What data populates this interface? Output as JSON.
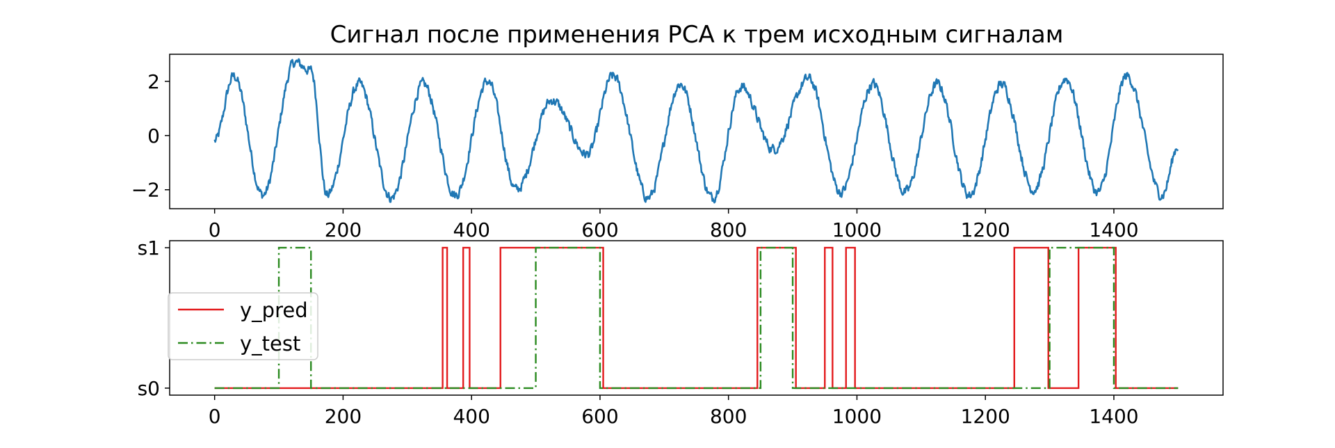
{
  "title": "Сигнал после применения PCA к трем исходным сигналам",
  "colors": {
    "signal": "#1f77b4",
    "y_pred": "#e31a1c",
    "y_test": "#2a8a1f",
    "axes": "#000000"
  },
  "chart_data": [
    {
      "type": "line",
      "title": "Сигнал после применения PCA к трем исходным сигналам",
      "xlim": [
        -70,
        1570
      ],
      "ylim": [
        -2.7,
        3.0
      ],
      "x_ticks": [
        0,
        200,
        400,
        600,
        800,
        1000,
        1200,
        1400
      ],
      "x_tick_labels": [
        "0",
        "200",
        "400",
        "600",
        "800",
        "1000",
        "1200",
        "1400"
      ],
      "y_ticks": [
        -2,
        0,
        2
      ],
      "y_tick_labels": [
        "−2",
        "0",
        "2"
      ],
      "grid": false,
      "series": [
        {
          "x_start": 0,
          "x_end": 1500,
          "peaks": [
            [
              0,
              -0.2
            ],
            [
              30,
              2.2
            ],
            [
              75,
              -2.2
            ],
            [
              125,
              2.7
            ],
            [
              150,
              2.4
            ],
            [
              175,
              -2.2
            ],
            [
              225,
              1.9
            ],
            [
              275,
              -2.3
            ],
            [
              325,
              1.9
            ],
            [
              375,
              -2.2
            ],
            [
              425,
              2.0
            ],
            [
              470,
              -2.0
            ],
            [
              525,
              1.3
            ],
            [
              580,
              -0.7
            ],
            [
              620,
              2.2
            ],
            [
              675,
              -2.3
            ],
            [
              725,
              1.9
            ],
            [
              775,
              -2.3
            ],
            [
              820,
              1.8
            ],
            [
              870,
              -0.5
            ],
            [
              925,
              2.1
            ],
            [
              975,
              -2.1
            ],
            [
              1025,
              1.9
            ],
            [
              1075,
              -2.1
            ],
            [
              1125,
              1.9
            ],
            [
              1175,
              -2.2
            ],
            [
              1225,
              1.9
            ],
            [
              1275,
              -2.0
            ],
            [
              1325,
              2.1
            ],
            [
              1375,
              -2.1
            ],
            [
              1420,
              2.2
            ],
            [
              1475,
              -2.2
            ],
            [
              1500,
              -0.4
            ]
          ],
          "noise_amplitude": 0.2
        }
      ]
    },
    {
      "type": "line",
      "xlim": [
        -70,
        1570
      ],
      "ylim": [
        -0.05,
        1.05
      ],
      "x_ticks": [
        0,
        200,
        400,
        600,
        800,
        1000,
        1200,
        1400
      ],
      "x_tick_labels": [
        "0",
        "200",
        "400",
        "600",
        "800",
        "1000",
        "1200",
        "1400"
      ],
      "y_ticks": [
        0,
        1
      ],
      "y_tick_labels": [
        "s0",
        "s1"
      ],
      "grid": false,
      "legend": {
        "placement": "center-left"
      },
      "series": [
        {
          "name": "y_pred",
          "style": "solid",
          "x_range": [
            0,
            1500
          ],
          "high_intervals": [
            [
              355,
              362
            ],
            [
              387,
              397
            ],
            [
              445,
              605
            ],
            [
              845,
              905
            ],
            [
              950,
              962
            ],
            [
              983,
              997
            ],
            [
              1245,
              1298
            ],
            [
              1345,
              1403
            ]
          ]
        },
        {
          "name": "y_test",
          "style": "dashdot",
          "x_range": [
            0,
            1500
          ],
          "high_intervals": [
            [
              100,
              150
            ],
            [
              500,
              600
            ],
            [
              850,
              900
            ],
            [
              1300,
              1400
            ]
          ]
        }
      ]
    }
  ]
}
